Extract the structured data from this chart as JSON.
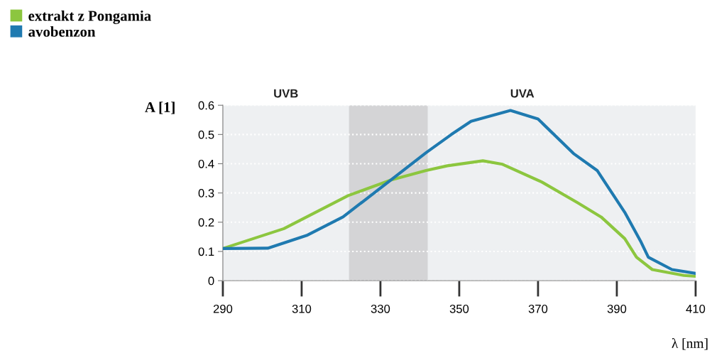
{
  "chart_data": {
    "type": "line",
    "xlabel": "λ [nm]",
    "ylabel": "A [1]",
    "xlim": [
      290,
      410
    ],
    "xticks": [
      290,
      310,
      330,
      350,
      370,
      390,
      410
    ],
    "ylim": [
      0,
      0.6
    ],
    "yticks": [
      0,
      0.1,
      0.2,
      0.3,
      0.4,
      0.5,
      0.6
    ],
    "grid": "y",
    "legend": "top left",
    "line_style": "solid",
    "marker": "none",
    "bands": [
      {
        "axis": "x",
        "from": 290,
        "to": 322,
        "label": "UVB",
        "color": "#eef0f2"
      },
      {
        "axis": "x",
        "from": 322,
        "to": 410,
        "label": "UVA",
        "color": "#eef0f2"
      },
      {
        "axis": "x",
        "from": 322,
        "to": 342,
        "color": "#d4d4d6"
      }
    ],
    "series": [
      {
        "name": "extrakt z Pongamia",
        "color": "#8cc63f",
        "x": [
          290,
          305.5,
          321.8,
          332.6,
          341.6,
          347,
          356,
          361,
          371,
          380,
          386,
          392,
          395,
          399,
          407,
          410
        ],
        "values": [
          0.11,
          0.178,
          0.291,
          0.344,
          0.377,
          0.393,
          0.41,
          0.398,
          0.337,
          0.267,
          0.218,
          0.144,
          0.08,
          0.038,
          0.018,
          0.015
        ]
      },
      {
        "name": "avobenzon",
        "color": "#1f7ab0",
        "x": [
          290,
          301.4,
          311.5,
          320.5,
          332.6,
          341.6,
          348,
          353,
          363,
          370,
          379,
          385,
          392,
          396,
          398,
          404,
          410
        ],
        "values": [
          0.11,
          0.111,
          0.156,
          0.218,
          0.344,
          0.438,
          0.5,
          0.545,
          0.582,
          0.553,
          0.435,
          0.377,
          0.234,
          0.136,
          0.08,
          0.038,
          0.025
        ]
      }
    ]
  }
}
